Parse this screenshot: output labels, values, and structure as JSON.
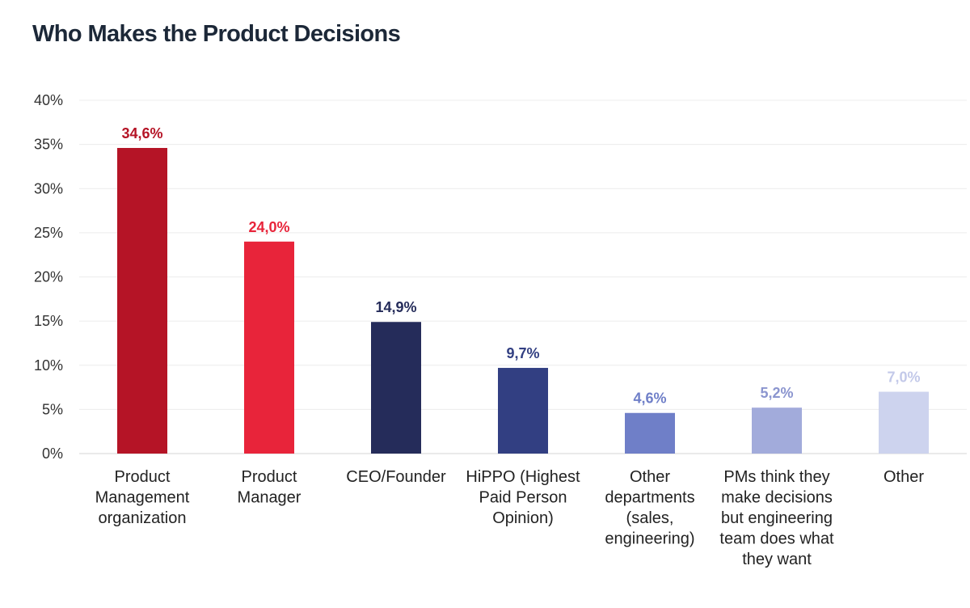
{
  "chart_data": {
    "type": "bar",
    "title": "Who Makes the Product Decisions",
    "xlabel": "",
    "ylabel": "",
    "ylim": [
      0,
      40
    ],
    "yticks": [
      "0%",
      "5%",
      "10%",
      "15%",
      "20%",
      "25%",
      "30%",
      "35%",
      "40%"
    ],
    "grid": true,
    "categories": [
      [
        "Product",
        "Management",
        "organization"
      ],
      [
        "Product",
        "Manager"
      ],
      [
        "CEO/Founder"
      ],
      [
        "HiPPO (Highest",
        "Paid Person",
        "Opinion)"
      ],
      [
        "Other",
        "departments",
        "(sales,",
        "engineering)"
      ],
      [
        "PMs think they",
        "make decisions",
        "but engineering",
        "team does what",
        "they want"
      ],
      [
        "Other"
      ]
    ],
    "values": [
      34.6,
      24.0,
      14.9,
      9.7,
      4.6,
      5.2,
      7.0
    ],
    "value_labels": [
      "34,6%",
      "24,0%",
      "14,9%",
      "9,7%",
      "4,6%",
      "5,2%",
      "7,0%"
    ],
    "bar_colors": [
      "#b51426",
      "#e8243a",
      "#252c5a",
      "#323f82",
      "#6f7fc8",
      "#a2abdb",
      "#cdd3ee"
    ],
    "label_colors": [
      "#b51426",
      "#e8243a",
      "#252c5a",
      "#323f82",
      "#6f7fc8",
      "#8b95cf",
      "#c3c9e9"
    ]
  }
}
